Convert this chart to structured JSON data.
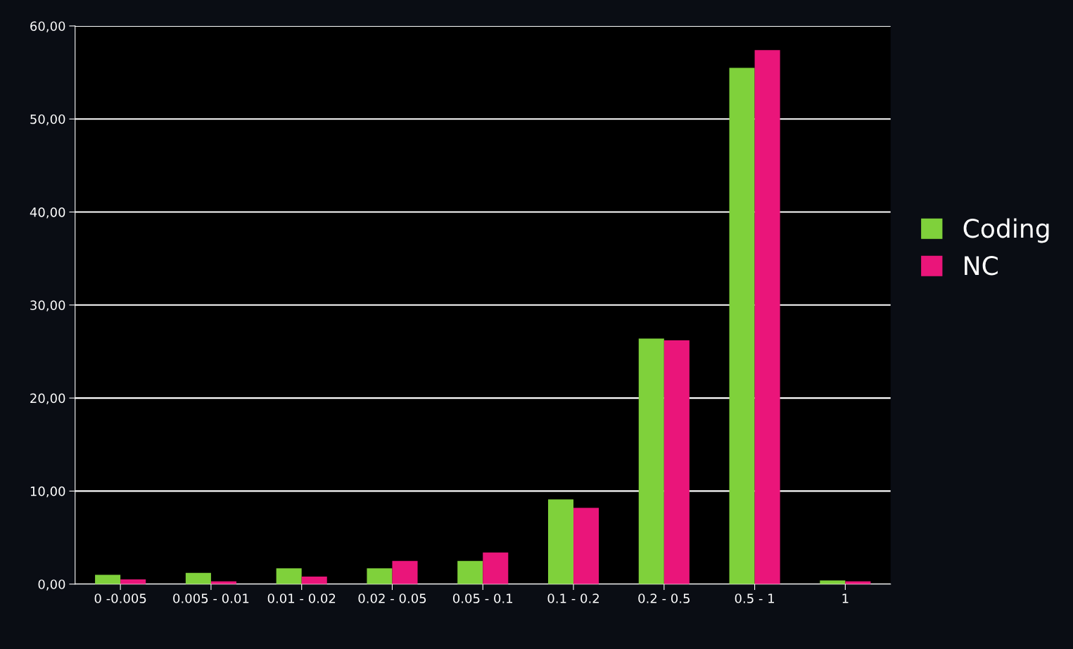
{
  "chart_data": {
    "type": "bar",
    "categories": [
      "0 -0.005",
      "0.005 - 0.01",
      "0.01 - 0.02",
      "0.02 - 0.05",
      "0.05 - 0.1",
      "0.1 - 0.2",
      "0.2 - 0.5",
      "0.5 - 1",
      "1"
    ],
    "series": [
      {
        "name": "Coding",
        "color": "#7fd13b",
        "values": [
          1.0,
          1.2,
          1.7,
          1.7,
          2.5,
          9.1,
          26.4,
          55.5,
          0.4
        ]
      },
      {
        "name": "NC",
        "color": "#ea157a",
        "values": [
          0.5,
          0.3,
          0.8,
          2.5,
          3.4,
          8.2,
          26.2,
          57.4,
          0.3
        ]
      }
    ],
    "ylim": [
      0,
      60
    ],
    "yticks": [
      {
        "value": 0,
        "label": "0,00"
      },
      {
        "value": 10,
        "label": "10,00"
      },
      {
        "value": 20,
        "label": "20,00"
      },
      {
        "value": 30,
        "label": "30,00"
      },
      {
        "value": 40,
        "label": "40,00"
      },
      {
        "value": 50,
        "label": "50,00"
      },
      {
        "value": 60,
        "label": "60,00"
      }
    ],
    "grid": "y",
    "legend": "right"
  }
}
